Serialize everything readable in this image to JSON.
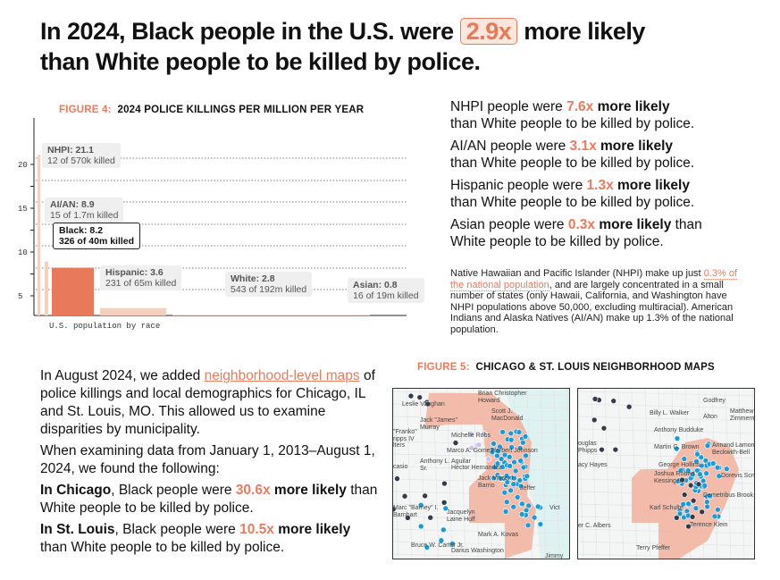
{
  "headline": {
    "part1": "In 2024, Black people in the U.S. were",
    "highlight": "2.9x",
    "part2": "more likely",
    "line2": "than White people to be killed by police."
  },
  "figure4": {
    "label": "FIGURE 4:",
    "title": "2024 POLICE KILLINGS PER MILLION PER YEAR"
  },
  "chart_data": {
    "type": "bar",
    "title": "2024 POLICE KILLINGS PER MILLION PER YEAR",
    "xlabel": "U.S. population by race",
    "ylabel": "",
    "y_ticks": [
      "5",
      "10",
      "15",
      "20"
    ],
    "grid": true,
    "categories": [
      "NHPI",
      "AI/AN",
      "Black",
      "Hispanic",
      "White",
      "Asian"
    ],
    "values": [
      21.1,
      8.9,
      8.2,
      3.6,
      2.8,
      0.8
    ],
    "details": [
      "12 of 570k killed",
      "15 of 1.7m killed",
      "326 of 40m killed",
      "231 of 65m killed",
      "543 of 192m killed",
      "16 of 19m killed"
    ],
    "highlighted": "Black",
    "colors": {
      "highlight": "#e8795a",
      "other": "#f6cfbd"
    }
  },
  "right": {
    "items": [
      {
        "pre": "NHPI people were ",
        "num": "7.6x",
        "bold": " more likely",
        "post": "than White people to be killed by police."
      },
      {
        "pre": "AI/AN people were ",
        "num": "3.1x",
        "bold": " more likely",
        "post": "than White people to be killed by police."
      },
      {
        "pre": "Hispanic people were ",
        "num": "1.3x",
        "bold": " more likely",
        "post": "than White people to be killed by police."
      },
      {
        "pre": "Asian people were ",
        "num": "0.3x",
        "bold": " more likely",
        "post2": " than",
        "post": "White people to be killed by police."
      }
    ],
    "note": {
      "a": "Native Hawaiian and Pacific Islander (NHPI) make up just ",
      "link": "0.3% of the national population",
      "b": ", and are largely concentrated in a small number of states (only Hawaii, California, and Washington have NHPI populations above 50,000, excluding multiracial). American Indians and Alaska Natives (AI/AN) make up 1.3% of the national population."
    }
  },
  "left": {
    "p1a": "In August 2024, we added ",
    "p1link": "neighborhood-level maps",
    "p1b": " of police killings and local demographics for Chicago, IL and St. Louis, MO. This allowed us to examine disparities by municipality.",
    "p2": "When examining data from January 1, 2013–August 1, 2024, we found the following:",
    "p3city": "In Chicago",
    "p3a": ", Black people were ",
    "p3num": "30.6x",
    "p3bold": " more likely",
    "p3b": " than White people to be killed by police.",
    "p4city": "In St. Louis",
    "p4a": ", Black people were ",
    "p4num": "10.5x",
    "p4bold": " more likely",
    "p4b": " than White people to be killed by police."
  },
  "figure5": {
    "label": "FIGURE 5:",
    "title": "CHICAGO & ST. LOUIS NEIGHBORHOOD MAPS"
  },
  "chicago_labels": [
    "Brian Christopher Howard",
    "Leslie Vaughan",
    "Scott J. MacDonald",
    "Jack \"James\" Murray",
    "\"Franko\" ripps IV",
    "Michelle Robs",
    "lters",
    "Marco A. Gomez",
    "Herbert Johnson",
    "Anthony L. Aguilar Sr.",
    "casio",
    "Hector Hernandez",
    "Jack Vincent Barrio",
    "Jeffer",
    "Marc \"Barney\" I. Barnhart",
    "Jacquelyn Laine Huff",
    "Vict",
    "Mark A. Kovas",
    "Bruce W. Carter Jr.",
    "Darius Washington",
    "Jimmy"
  ],
  "stlouis_labels": [
    "Godfrey",
    "Billy L. Walker",
    "Alton",
    "Matthew Zimmerm",
    "Anthony Budduke",
    "ouglas Phipps",
    "Martin G. Brown",
    "Annand Lamont Beckwith-Bell",
    "acy Hayes",
    "George Hollins",
    "Joshua Robert Kessinger",
    "Dorevis Scruggs",
    "Demetribus Brook",
    "Karl Schulte",
    "Terence Klein",
    "er C. Albers",
    "Terry Pfeffer"
  ]
}
